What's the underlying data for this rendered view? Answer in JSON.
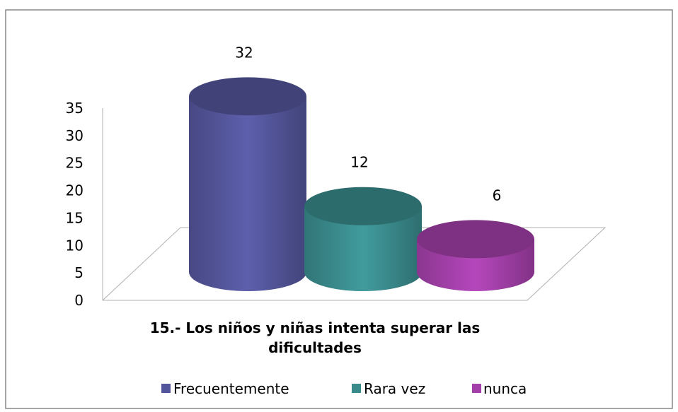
{
  "chart_data": {
    "type": "bar3d_cylinder",
    "categories": [
      "15.- Los niños y niñas intenta superar las dificultades"
    ],
    "series": [
      {
        "name": "Frecuentemente",
        "color": "#53559a",
        "values": [
          32
        ]
      },
      {
        "name": "Rara vez",
        "color": "#3a8a8c",
        "values": [
          12
        ]
      },
      {
        "name": "nunca",
        "color": "#a23fa8",
        "values": [
          6
        ]
      }
    ],
    "ylim": [
      0,
      35
    ],
    "yticks": [
      0,
      5,
      10,
      15,
      20,
      25,
      30,
      35
    ],
    "legend": "bottom",
    "grid": false
  }
}
